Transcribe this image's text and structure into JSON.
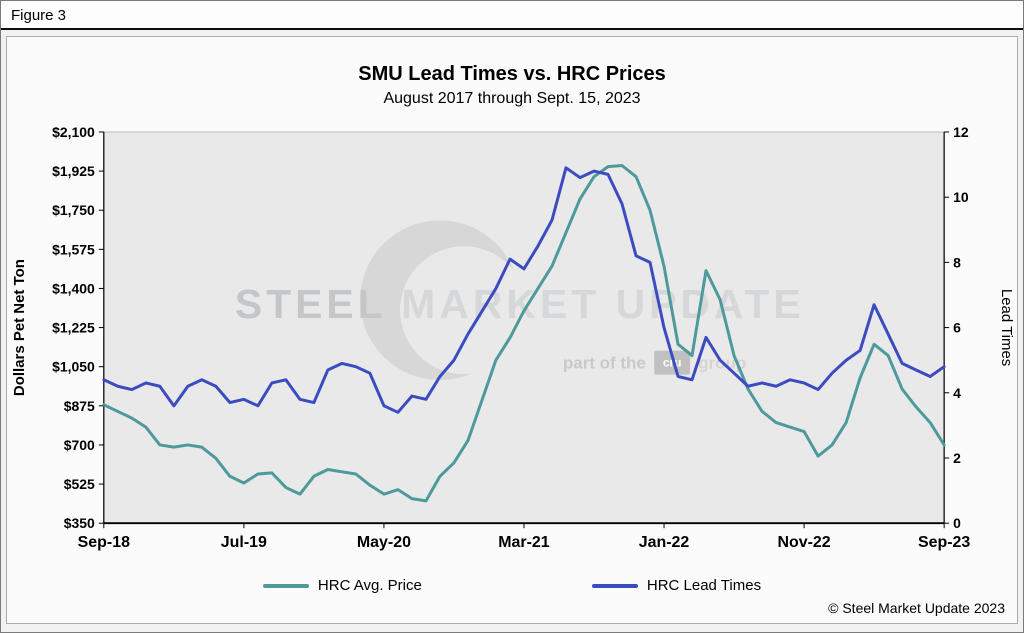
{
  "figure_label": "Figure 3",
  "title": "SMU Lead Times vs. HRC Prices",
  "subtitle": "August 2017 through Sept. 15, 2023",
  "copyright": "© Steel Market Update 2023",
  "watermark": {
    "brand_bold": "STEEL",
    "brand_light": "MARKET UPDATE",
    "tagline_prefix": "part of the",
    "logo_text": "cru",
    "tagline_suffix": "group"
  },
  "legend": [
    {
      "label": "HRC Avg. Price",
      "color": "#4e9a9b"
    },
    {
      "label": "HRC Lead Times",
      "color": "#3b4cc0"
    }
  ],
  "chart_data": {
    "type": "line",
    "title": "SMU Lead Times vs. HRC Prices",
    "subtitle": "August 2017 through Sept. 15, 2023",
    "grid": false,
    "legend_position": "bottom",
    "plot_bg": "#e9e9e9",
    "x_tick_labels": [
      "Sep-18",
      "Jul-19",
      "May-20",
      "Mar-21",
      "Jan-22",
      "Nov-22",
      "Sep-23"
    ],
    "x": [
      "Sep-18",
      "Oct-18",
      "Nov-18",
      "Dec-18",
      "Jan-19",
      "Feb-19",
      "Mar-19",
      "Apr-19",
      "May-19",
      "Jun-19",
      "Jul-19",
      "Aug-19",
      "Sep-19",
      "Oct-19",
      "Nov-19",
      "Dec-19",
      "Jan-20",
      "Feb-20",
      "Mar-20",
      "Apr-20",
      "May-20",
      "Jun-20",
      "Jul-20",
      "Aug-20",
      "Sep-20",
      "Oct-20",
      "Nov-20",
      "Dec-20",
      "Jan-21",
      "Feb-21",
      "Mar-21",
      "Apr-21",
      "May-21",
      "Jun-21",
      "Jul-21",
      "Aug-21",
      "Sep-21",
      "Oct-21",
      "Nov-21",
      "Dec-21",
      "Jan-22",
      "Feb-22",
      "Mar-22",
      "Apr-22",
      "May-22",
      "Jun-22",
      "Jul-22",
      "Aug-22",
      "Sep-22",
      "Oct-22",
      "Nov-22",
      "Dec-22",
      "Jan-23",
      "Feb-23",
      "Mar-23",
      "Apr-23",
      "May-23",
      "Jun-23",
      "Jul-23",
      "Aug-23",
      "Sep-23"
    ],
    "y_left": {
      "label": "Dollars Pet Net Ton",
      "min": 350,
      "max": 2100,
      "tick_labels": [
        "$2,100",
        "$1,925",
        "$1,750",
        "$1,575",
        "$1,400",
        "$1,225",
        "$1,050",
        "$875",
        "$700",
        "$525",
        "$350"
      ]
    },
    "y_right": {
      "label": "Lead Times",
      "min": 0,
      "max": 12,
      "tick_labels": [
        "12",
        "10",
        "8",
        "6",
        "4",
        "2",
        "0"
      ]
    },
    "series": [
      {
        "name": "HRC Avg. Price",
        "axis": "left",
        "unit": "USD per net ton",
        "color": "#4e9a9b",
        "values": [
          880,
          850,
          820,
          780,
          700,
          690,
          700,
          690,
          640,
          560,
          530,
          570,
          575,
          510,
          480,
          560,
          590,
          580,
          570,
          520,
          480,
          500,
          460,
          450,
          560,
          620,
          720,
          900,
          1080,
          1180,
          1300,
          1400,
          1500,
          1650,
          1800,
          1900,
          1945,
          1950,
          1900,
          1750,
          1500,
          1150,
          1100,
          1480,
          1350,
          1100,
          950,
          850,
          800,
          780,
          760,
          650,
          700,
          800,
          1000,
          1150,
          1100,
          950,
          870,
          800,
          700
        ]
      },
      {
        "name": "HRC Lead Times",
        "axis": "right",
        "unit": "weeks",
        "color": "#3b4cc0",
        "values": [
          4.4,
          4.2,
          4.1,
          4.3,
          4.2,
          3.6,
          4.2,
          4.4,
          4.2,
          3.7,
          3.8,
          3.6,
          4.3,
          4.4,
          3.8,
          3.7,
          4.7,
          4.9,
          4.8,
          4.6,
          3.6,
          3.4,
          3.9,
          3.8,
          4.5,
          5.0,
          5.8,
          6.5,
          7.2,
          8.1,
          7.8,
          8.5,
          9.3,
          10.9,
          10.6,
          10.8,
          10.7,
          9.8,
          8.2,
          8.0,
          6.0,
          4.5,
          4.4,
          5.7,
          5.0,
          4.6,
          4.2,
          4.3,
          4.2,
          4.4,
          4.3,
          4.1,
          4.6,
          5.0,
          5.3,
          6.7,
          5.8,
          4.9,
          4.7,
          4.5,
          4.8
        ]
      }
    ]
  }
}
